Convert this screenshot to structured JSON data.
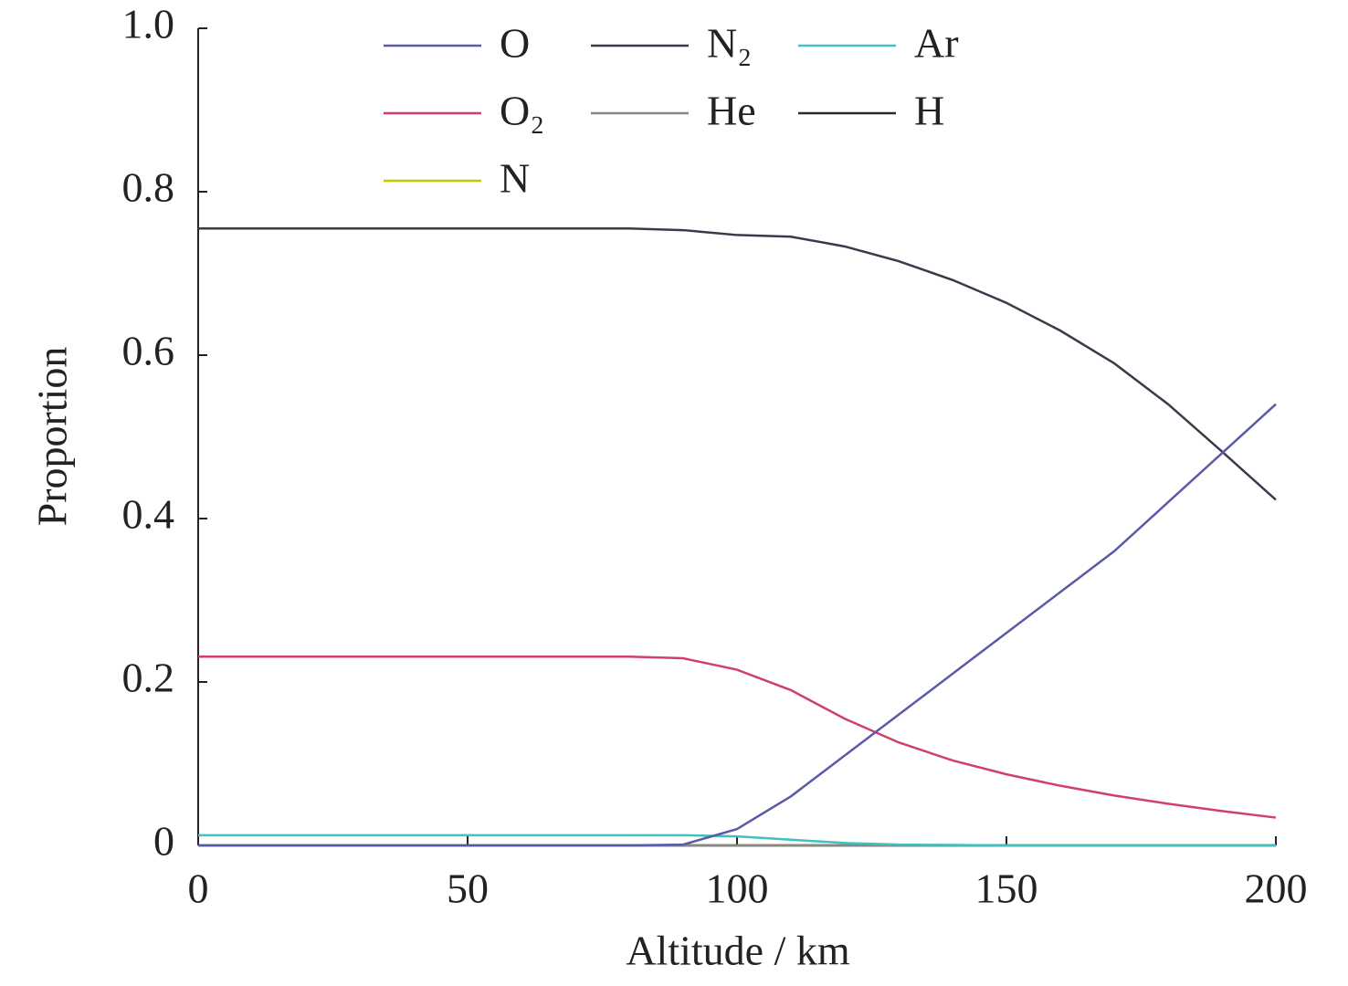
{
  "chart_data": {
    "type": "line",
    "x_label": "Altitude / km",
    "y_label": "Proportion",
    "x": [
      0,
      10,
      20,
      30,
      40,
      50,
      60,
      70,
      80,
      90,
      100,
      110,
      120,
      130,
      140,
      150,
      160,
      170,
      180,
      190,
      200
    ],
    "series": [
      {
        "name": "O",
        "color": "#5a5aa8",
        "values": [
          0,
          0,
          0,
          0,
          0,
          0,
          0,
          0,
          0,
          0.001,
          0.02,
          0.06,
          0.11,
          0.16,
          0.21,
          0.26,
          0.31,
          0.36,
          0.42,
          0.48,
          0.54
        ]
      },
      {
        "name": "N₂",
        "color": "#3a3a4a",
        "values": [
          0.755,
          0.755,
          0.755,
          0.755,
          0.755,
          0.755,
          0.755,
          0.755,
          0.755,
          0.753,
          0.747,
          0.745,
          0.733,
          0.715,
          0.692,
          0.664,
          0.63,
          0.59,
          0.54,
          0.482,
          0.423
        ]
      },
      {
        "name": "Ar",
        "color": "#40c0c0",
        "values": [
          0.0125,
          0.0125,
          0.0125,
          0.0125,
          0.0125,
          0.0125,
          0.0125,
          0.0125,
          0.0125,
          0.0125,
          0.011,
          0.007,
          0.003,
          0.001,
          0.0005,
          0,
          0,
          0,
          0,
          0,
          0
        ]
      },
      {
        "name": "O₂",
        "color": "#d0406a",
        "values": [
          0.231,
          0.231,
          0.231,
          0.231,
          0.231,
          0.231,
          0.231,
          0.231,
          0.231,
          0.229,
          0.215,
          0.19,
          0.155,
          0.126,
          0.104,
          0.087,
          0.073,
          0.061,
          0.051,
          0.042,
          0.034
        ]
      },
      {
        "name": "He",
        "color": "#888888",
        "values": [
          0,
          0,
          0,
          0,
          0,
          0,
          0,
          0,
          0,
          0,
          0,
          0,
          0,
          0,
          0,
          0,
          0,
          0,
          0,
          0,
          0
        ]
      },
      {
        "name": "H",
        "color": "#2a2a2a",
        "values": [
          0,
          0,
          0,
          0,
          0,
          0,
          0,
          0,
          0,
          0,
          0,
          0,
          0,
          0,
          0,
          0,
          0,
          0,
          0,
          0,
          0
        ]
      },
      {
        "name": "N",
        "color": "#c8c800",
        "values": [
          0,
          0,
          0,
          0,
          0,
          0,
          0,
          0,
          0,
          0,
          0,
          0,
          0,
          0,
          0,
          0,
          0,
          0,
          0,
          0,
          0
        ]
      }
    ],
    "xlim": [
      0,
      200
    ],
    "xticks": [
      0,
      50,
      100,
      150,
      200
    ],
    "ylim": [
      0,
      1
    ],
    "yticks": [
      0,
      0.2,
      0.4,
      0.6,
      0.8,
      {
        "value": 1,
        "label": "1.0"
      }
    ],
    "grid": false
  }
}
